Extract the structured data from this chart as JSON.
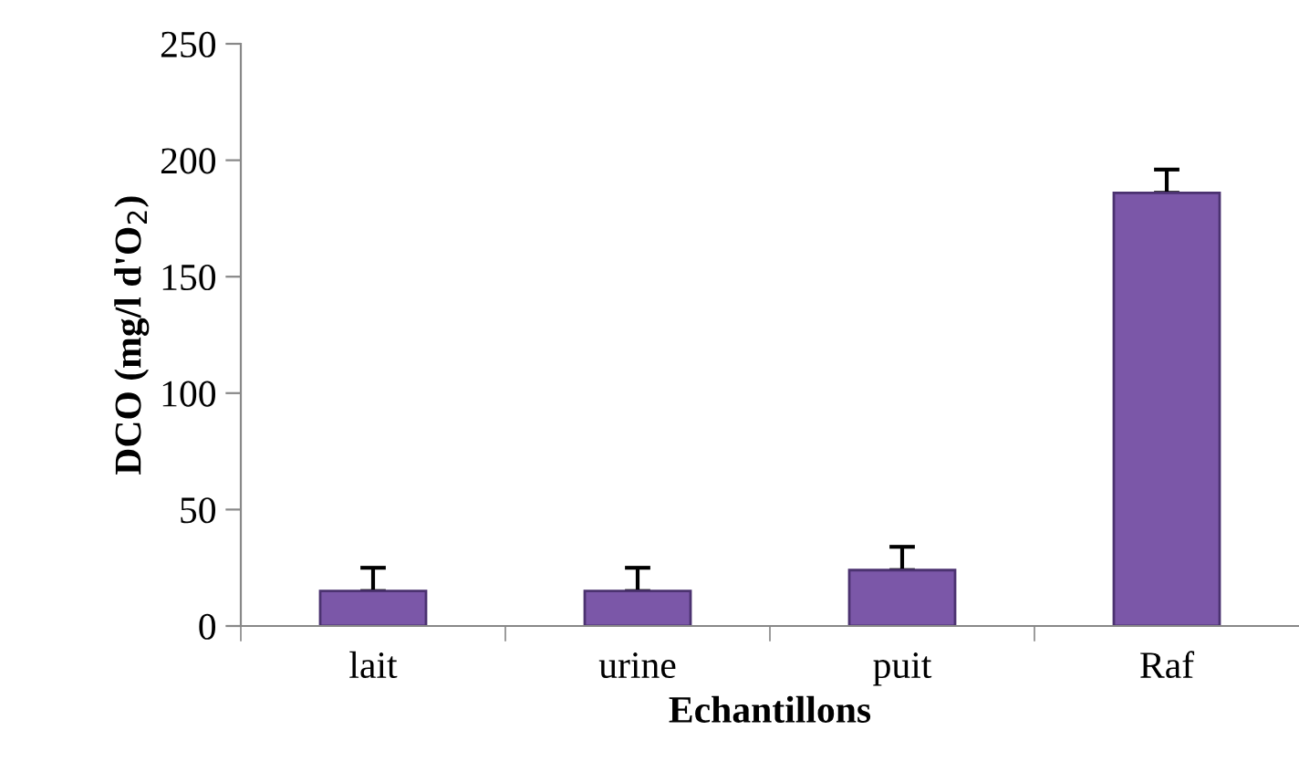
{
  "chart_data": {
    "type": "bar",
    "xlabel": "Echantillons",
    "ylabel": "DCO (mg/l d'O$_{2}$)",
    "categories": [
      "lait",
      "urine",
      "puit",
      "Raf"
    ],
    "values": [
      15,
      15,
      24,
      186
    ],
    "errors": [
      [
        15,
        25
      ],
      [
        15,
        25
      ],
      [
        24,
        34
      ],
      [
        186,
        196
      ]
    ],
    "color": "#7b57a8",
    "ylim": [
      0,
      250
    ],
    "yticks": [
      0,
      50,
      100,
      150,
      200,
      250
    ],
    "grid": false,
    "legend": false
  }
}
